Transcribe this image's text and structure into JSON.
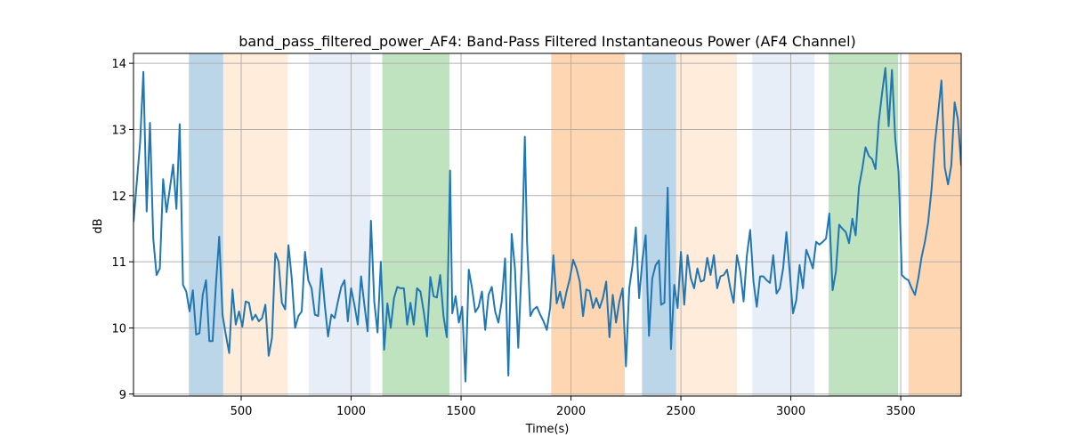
{
  "chart_data": {
    "type": "line",
    "title": "band_pass_filtered_power_AF4: Band-Pass Filtered Instantaneous Power (AF4 Channel)",
    "xlabel": "Time(s)",
    "ylabel": "dB",
    "xlim": [
      10,
      3775
    ],
    "ylim": [
      8.97,
      14.15
    ],
    "xticks": [
      500,
      1000,
      1500,
      2000,
      2500,
      3000,
      3500
    ],
    "xtick_labels": [
      "500",
      "1000",
      "1500",
      "2000",
      "2500",
      "3000",
      "3500"
    ],
    "yticks": [
      9,
      10,
      11,
      12,
      13,
      14
    ],
    "ytick_labels": [
      "9",
      "10",
      "11",
      "12",
      "13",
      "14"
    ],
    "grid": true,
    "series": [
      {
        "color": "#1f77b4",
        "x": [
          10,
          40,
          55,
          70,
          85,
          100,
          115,
          130,
          145,
          160,
          175,
          190,
          205,
          220,
          235,
          250,
          265,
          280,
          295,
          310,
          325,
          340,
          355,
          370,
          385,
          400,
          415,
          430,
          445,
          460,
          475,
          490,
          505,
          520,
          535,
          550,
          565,
          580,
          595,
          610,
          625,
          640,
          655,
          670,
          685,
          700,
          715,
          730,
          745,
          760,
          775,
          790,
          805,
          820,
          835,
          850,
          865,
          880,
          895,
          910,
          925,
          940,
          955,
          970,
          985,
          1000,
          1015,
          1030,
          1045,
          1060,
          1075,
          1090,
          1105,
          1120,
          1135,
          1150,
          1165,
          1180,
          1195,
          1210,
          1225,
          1240,
          1255,
          1270,
          1285,
          1300,
          1315,
          1330,
          1345,
          1360,
          1375,
          1390,
          1405,
          1420,
          1435,
          1450,
          1460,
          1475,
          1490,
          1505,
          1520,
          1535,
          1550,
          1565,
          1580,
          1595,
          1610,
          1625,
          1640,
          1655,
          1670,
          1685,
          1700,
          1715,
          1730,
          1745,
          1760,
          1775,
          1790,
          1800,
          1815,
          1830,
          1845,
          1860,
          1875,
          1890,
          1905,
          1920,
          1935,
          1950,
          1965,
          1980,
          1995,
          2010,
          2025,
          2040,
          2055,
          2070,
          2085,
          2100,
          2115,
          2130,
          2145,
          2160,
          2175,
          2190,
          2205,
          2220,
          2235,
          2250,
          2265,
          2280,
          2295,
          2310,
          2325,
          2340,
          2355,
          2370,
          2385,
          2400,
          2410,
          2425,
          2440,
          2455,
          2470,
          2485,
          2500,
          2515,
          2530,
          2545,
          2560,
          2575,
          2590,
          2605,
          2620,
          2635,
          2650,
          2665,
          2680,
          2695,
          2710,
          2725,
          2740,
          2755,
          2770,
          2785,
          2800,
          2815,
          2830,
          2845,
          2860,
          2875,
          2890,
          2905,
          2920,
          2935,
          2950,
          2965,
          2980,
          2995,
          3010,
          3025,
          3040,
          3055,
          3070,
          3085,
          3100,
          3115,
          3130,
          3145,
          3160,
          3175,
          3190,
          3205,
          3220,
          3235,
          3250,
          3265,
          3280,
          3295,
          3310,
          3325,
          3340,
          3355,
          3370,
          3385,
          3400,
          3415,
          3430,
          3445,
          3460,
          3475,
          3490,
          3505,
          3520,
          3535,
          3550,
          3565,
          3580,
          3595,
          3610,
          3625,
          3640,
          3655,
          3670,
          3685,
          3700,
          3715,
          3730,
          3745,
          3760,
          3775
        ],
        "y": [
          11.6,
          12.8,
          13.87,
          11.76,
          13.1,
          11.35,
          10.8,
          10.9,
          12.25,
          11.75,
          12.1,
          12.47,
          11.8,
          13.08,
          10.65,
          10.55,
          10.25,
          10.57,
          9.9,
          9.92,
          10.5,
          10.72,
          9.8,
          9.8,
          10.65,
          11.38,
          10.2,
          9.9,
          9.62,
          10.58,
          10.05,
          10.25,
          10.02,
          10.4,
          10.38,
          10.12,
          10.2,
          10.1,
          10.15,
          10.35,
          9.58,
          9.85,
          11.13,
          11.0,
          10.38,
          10.28,
          11.25,
          10.75,
          10.0,
          10.18,
          10.25,
          11.15,
          10.72,
          10.6,
          10.2,
          10.18,
          10.9,
          10.35,
          9.87,
          10.2,
          10.15,
          10.4,
          10.62,
          10.72,
          10.1,
          10.6,
          10.35,
          10.05,
          10.78,
          10.35,
          9.95,
          11.62,
          10.4,
          9.93,
          11.0,
          9.67,
          10.37,
          10.0,
          10.45,
          10.62,
          10.6,
          10.6,
          10.05,
          10.38,
          10.05,
          10.6,
          10.55,
          10.25,
          9.87,
          10.77,
          10.48,
          10.46,
          10.8,
          10.18,
          9.86,
          12.38,
          10.22,
          10.48,
          10.08,
          10.32,
          9.19,
          10.88,
          10.6,
          10.24,
          10.32,
          10.55,
          9.97,
          10.5,
          10.62,
          10.25,
          10.08,
          10.4,
          11.05,
          9.28,
          11.42,
          10.9,
          9.7,
          10.9,
          12.89,
          11.3,
          10.18,
          10.28,
          10.32,
          10.2,
          10.1,
          9.97,
          10.3,
          11.1,
          10.37,
          10.55,
          10.3,
          10.55,
          10.75,
          11.03,
          10.9,
          10.7,
          10.18,
          10.58,
          10.56,
          10.3,
          10.45,
          10.3,
          10.45,
          10.7,
          9.86,
          10.5,
          10.08,
          10.4,
          10.6,
          9.42,
          10.6,
          10.95,
          11.52,
          10.45,
          11.03,
          11.4,
          9.88,
          10.75,
          10.95,
          11.02,
          10.35,
          10.38,
          12.12,
          9.68,
          10.65,
          10.3,
          11.15,
          10.35,
          11.1,
          10.75,
          10.6,
          10.9,
          10.7,
          10.72,
          11.06,
          10.8,
          11.1,
          10.6,
          10.78,
          10.8,
          10.88,
          10.6,
          10.38,
          11.1,
          10.85,
          10.4,
          11.1,
          11.48,
          10.7,
          10.32,
          10.78,
          10.78,
          10.72,
          10.68,
          11.1,
          10.52,
          10.6,
          10.9,
          11.45,
          10.85,
          10.22,
          10.42,
          10.95,
          10.6,
          11.18,
          11.05,
          10.9,
          11.3,
          11.26,
          11.3,
          11.35,
          11.73,
          10.57,
          10.85,
          11.56,
          11.5,
          11.45,
          11.28,
          11.65,
          11.4,
          12.13,
          12.4,
          12.73,
          12.6,
          12.55,
          12.4,
          13.12,
          13.55,
          13.93,
          13.05,
          13.9,
          12.86,
          12.36,
          10.8,
          10.75,
          10.72,
          10.6,
          10.5,
          10.75,
          11.07,
          11.3,
          11.6,
          12.1,
          12.79,
          13.25,
          13.74,
          12.43,
          12.17,
          12.46,
          13.41,
          13.15,
          12.45
        ]
      }
    ],
    "bands": [
      {
        "x0": 262,
        "x1": 418,
        "color": "#1f77b4",
        "alpha": 0.3
      },
      {
        "x0": 418,
        "x1": 712,
        "color": "#ff7f0e",
        "alpha": 0.15
      },
      {
        "x0": 807,
        "x1": 1088,
        "color": "#aec7e8",
        "alpha": 0.3
      },
      {
        "x0": 1142,
        "x1": 1447,
        "color": "#2ca02c",
        "alpha": 0.3
      },
      {
        "x0": 1910,
        "x1": 2245,
        "color": "#ff7f0e",
        "alpha": 0.32
      },
      {
        "x0": 2323,
        "x1": 2478,
        "color": "#1f77b4",
        "alpha": 0.3
      },
      {
        "x0": 2478,
        "x1": 2755,
        "color": "#ff7f0e",
        "alpha": 0.15
      },
      {
        "x0": 2825,
        "x1": 3108,
        "color": "#aec7e8",
        "alpha": 0.3
      },
      {
        "x0": 3172,
        "x1": 3488,
        "color": "#2ca02c",
        "alpha": 0.3
      },
      {
        "x0": 3535,
        "x1": 3775,
        "color": "#ff7f0e",
        "alpha": 0.32
      }
    ]
  }
}
